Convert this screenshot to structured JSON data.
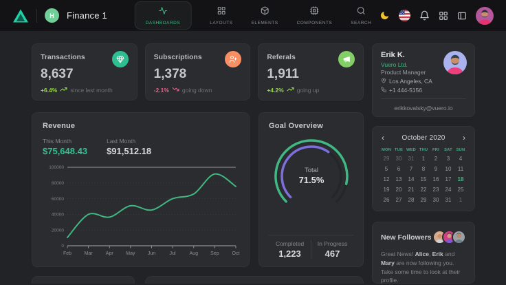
{
  "colors": {
    "accent": "#41b883",
    "money_green": "#2ec391",
    "lime_up": "#98d94d",
    "pink_down": "#ef5d8a",
    "purple_arc": "#7d6fdc",
    "moon_gold": "#f2c231",
    "navbar_bg": "#131315",
    "page_bg": "#212326",
    "card_bg": "#2a2c2f"
  },
  "navbar": {
    "brand": "Finance 1",
    "workspace_initial": "H",
    "tabs": [
      {
        "label": "DASHBOARDS",
        "icon": "activity-icon",
        "active": true
      },
      {
        "label": "LAYOUTS",
        "icon": "layout-grid-icon",
        "active": false
      },
      {
        "label": "ELEMENTS",
        "icon": "box-icon",
        "active": false
      },
      {
        "label": "COMPONENTS",
        "icon": "cpu-icon",
        "active": false
      },
      {
        "label": "SEARCH",
        "icon": "search-icon",
        "active": false
      }
    ],
    "action_icons": [
      "moon-icon",
      "us-flag-icon",
      "bell-icon",
      "apps-grid-icon",
      "panel-left-icon",
      "user-avatar"
    ]
  },
  "stats": [
    {
      "label": "Transactions",
      "value": "8,637",
      "delta": "+6.4%",
      "delta_dir": "up",
      "note": "since last month",
      "icon": "gem-icon",
      "icon_bg": "#2fbe8f"
    },
    {
      "label": "Subscriptions",
      "value": "1,378",
      "delta": "-2.1%",
      "delta_dir": "down",
      "note": "going down",
      "icon": "user-plus-icon",
      "icon_bg": "#f78e64"
    },
    {
      "label": "Referals",
      "value": "1,911",
      "delta": "+4.2%",
      "delta_dir": "up",
      "note": "going up",
      "icon": "megaphone-icon",
      "icon_bg": "#84cf65"
    }
  ],
  "profile": {
    "name": "Erik K.",
    "company": "Vuero Ltd.",
    "role": "Product Manager",
    "location": "Los Angeles, CA",
    "phone": "+1 444-5156",
    "email": "erikkovalsky@vuero.io"
  },
  "revenue": {
    "title": "Revenue",
    "this_month_label": "This Month",
    "this_month_value": "$75,648.43",
    "last_month_label": "Last Month",
    "last_month_value": "$91,512.18"
  },
  "goal": {
    "title": "Goal Overview",
    "center_label": "Total",
    "center_value": "71.5%",
    "completed_label": "Completed",
    "completed_value": "1,223",
    "in_progress_label": "In Progress",
    "in_progress_value": "467"
  },
  "calendar": {
    "month": "October 2020",
    "prev_icon": "‹",
    "next_icon": "›",
    "weekdays": [
      "MON",
      "TUE",
      "WED",
      "THU",
      "FRI",
      "SAT",
      "SUN"
    ],
    "weeks": [
      [
        {
          "d": "29",
          "out": true
        },
        {
          "d": "30",
          "out": true
        },
        {
          "d": "31",
          "out": true
        },
        {
          "d": "1"
        },
        {
          "d": "2"
        },
        {
          "d": "3"
        },
        {
          "d": "4"
        }
      ],
      [
        {
          "d": "5"
        },
        {
          "d": "6"
        },
        {
          "d": "7"
        },
        {
          "d": "8"
        },
        {
          "d": "9"
        },
        {
          "d": "10"
        },
        {
          "d": "11"
        }
      ],
      [
        {
          "d": "12"
        },
        {
          "d": "13"
        },
        {
          "d": "14"
        },
        {
          "d": "15"
        },
        {
          "d": "16"
        },
        {
          "d": "17"
        },
        {
          "d": "18",
          "sel": true
        }
      ],
      [
        {
          "d": "19"
        },
        {
          "d": "20"
        },
        {
          "d": "21"
        },
        {
          "d": "22"
        },
        {
          "d": "23"
        },
        {
          "d": "24"
        },
        {
          "d": "25"
        }
      ],
      [
        {
          "d": "26"
        },
        {
          "d": "27"
        },
        {
          "d": "28"
        },
        {
          "d": "29"
        },
        {
          "d": "30"
        },
        {
          "d": "31"
        },
        {
          "d": "1",
          "out": true
        }
      ]
    ]
  },
  "followers": {
    "title": "New Followers",
    "avatar_icons": [
      "avatar-alice",
      "avatar-erik",
      "avatar-mary"
    ],
    "message_segments": [
      {
        "t": "Great News! "
      },
      {
        "t": "Alice",
        "b": true
      },
      {
        "t": ", "
      },
      {
        "t": "Erik",
        "b": true
      },
      {
        "t": " and "
      },
      {
        "t": "Mary",
        "b": true
      },
      {
        "t": " are now following you. Take some time to look at their profile."
      }
    ]
  },
  "chart_data": [
    {
      "type": "line",
      "title": "Revenue",
      "x": [
        "Feb",
        "Mar",
        "Apr",
        "May",
        "Jun",
        "Jul",
        "Aug",
        "Sep",
        "Oct"
      ],
      "series": [
        {
          "name": "Revenue",
          "values": [
            10500,
            40000,
            36500,
            51000,
            45500,
            60000,
            66000,
            91500,
            75648
          ]
        }
      ],
      "ylim": [
        0,
        100000
      ],
      "yticks": [
        0,
        20000,
        40000,
        60000,
        80000,
        100000
      ],
      "line_color": "#41b883",
      "grid": true,
      "legend": false
    },
    {
      "type": "radialBar",
      "title": "Goal Overview",
      "series": [
        {
          "name": "Completed",
          "pct": 88,
          "color": "#41b883"
        },
        {
          "name": "In Progress",
          "pct": 63,
          "color": "#7d6fdc"
        }
      ],
      "center_label": "Total",
      "center_value": "71.5%",
      "start_angle": -135,
      "end_angle": 135
    }
  ]
}
